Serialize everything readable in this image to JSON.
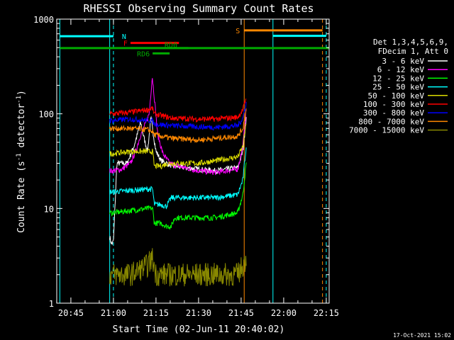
{
  "chart_data": {
    "type": "line",
    "title": "RHESSI Observing Summary Count Rates",
    "xlabel": "Start Time (02-Jun-11 20:40:02)",
    "ylabel": "Count Rate (s⁻¹ detector⁻¹)",
    "ylabel_parts": [
      "Count Rate (s",
      "-1",
      " detector",
      "-1",
      ")"
    ],
    "y_scale": "log",
    "ylim": [
      1,
      1000
    ],
    "y_ticks": [
      {
        "v": 1,
        "label": "1"
      },
      {
        "v": 10,
        "label": "10"
      },
      {
        "v": 100,
        "label": "100"
      },
      {
        "v": 1000,
        "label": "1000"
      }
    ],
    "xlim_minutes": [
      20.667,
      22.267
    ],
    "x_ticks": [
      {
        "h": 20.75,
        "label": "20:45"
      },
      {
        "h": 21.0,
        "label": "21:00"
      },
      {
        "h": 21.25,
        "label": "21:15"
      },
      {
        "h": 21.5,
        "label": "21:30"
      },
      {
        "h": 21.75,
        "label": "21:45"
      },
      {
        "h": 22.0,
        "label": "22:00"
      },
      {
        "h": 22.25,
        "label": "22:15"
      }
    ],
    "legend": {
      "position": "right",
      "header": [
        "Det 1,3,4,5,6,9,",
        "FDecim 1, Att 0"
      ],
      "entries": [
        {
          "label": "3 - 6 keV",
          "color": "#ffffff"
        },
        {
          "label": "6 - 12 keV",
          "color": "#ff00ff"
        },
        {
          "label": "12 - 25 keV",
          "color": "#00ff00"
        },
        {
          "label": "25 - 50 keV",
          "color": "#00ffff"
        },
        {
          "label": "50 - 100 keV",
          "color": "#dddd00"
        },
        {
          "label": "100 - 300 keV",
          "color": "#ff0000"
        },
        {
          "label": "300 - 800 keV",
          "color": "#0000ff"
        },
        {
          "label": "800 - 7000 keV",
          "color": "#ff8800"
        },
        {
          "label": "7000 - 15000 keV",
          "color": "#888800"
        }
      ]
    },
    "series": [
      {
        "color": "#ffffff",
        "points": [
          [
            20.978,
            5
          ],
          [
            20.99,
            4.2
          ],
          [
            21.0,
            4.5
          ],
          [
            21.02,
            30
          ],
          [
            21.08,
            30
          ],
          [
            21.12,
            45
          ],
          [
            21.16,
            80
          ],
          [
            21.18,
            55
          ],
          [
            21.2,
            40
          ],
          [
            21.22,
            90
          ],
          [
            21.25,
            40
          ],
          [
            21.28,
            32
          ],
          [
            21.35,
            28
          ],
          [
            21.5,
            26
          ],
          [
            21.6,
            25
          ],
          [
            21.73,
            27
          ],
          [
            21.76,
            40
          ],
          [
            21.78,
            90
          ]
        ]
      },
      {
        "color": "#ff00ff",
        "points": [
          [
            20.978,
            25
          ],
          [
            21.0,
            25
          ],
          [
            21.05,
            26
          ],
          [
            21.1,
            30
          ],
          [
            21.13,
            40
          ],
          [
            21.16,
            60
          ],
          [
            21.19,
            80
          ],
          [
            21.21,
            100
          ],
          [
            21.228,
            250
          ],
          [
            21.24,
            150
          ],
          [
            21.26,
            60
          ],
          [
            21.29,
            38
          ],
          [
            21.33,
            30
          ],
          [
            21.38,
            28
          ],
          [
            21.5,
            25
          ],
          [
            21.6,
            24
          ],
          [
            21.73,
            26
          ],
          [
            21.76,
            45
          ],
          [
            21.78,
            110
          ]
        ]
      },
      {
        "color": "#00ff00",
        "points": [
          [
            20.978,
            9
          ],
          [
            21.0,
            9
          ],
          [
            21.1,
            9.5
          ],
          [
            21.2,
            10
          ],
          [
            21.23,
            10
          ],
          [
            21.24,
            7
          ],
          [
            21.28,
            7
          ],
          [
            21.31,
            6.5
          ],
          [
            21.34,
            6.5
          ],
          [
            21.36,
            8
          ],
          [
            21.5,
            8
          ],
          [
            21.6,
            8
          ],
          [
            21.73,
            9
          ],
          [
            21.76,
            14
          ],
          [
            21.78,
            30
          ]
        ]
      },
      {
        "color": "#00ffff",
        "points": [
          [
            20.978,
            15
          ],
          [
            21.0,
            15
          ],
          [
            21.1,
            15.5
          ],
          [
            21.2,
            16
          ],
          [
            21.23,
            16
          ],
          [
            21.24,
            11
          ],
          [
            21.28,
            11
          ],
          [
            21.31,
            10.5
          ],
          [
            21.34,
            13
          ],
          [
            21.5,
            13
          ],
          [
            21.6,
            13
          ],
          [
            21.73,
            14
          ],
          [
            21.76,
            20
          ],
          [
            21.78,
            45
          ]
        ]
      },
      {
        "color": "#dddd00",
        "points": [
          [
            20.978,
            38
          ],
          [
            21.0,
            38
          ],
          [
            21.1,
            40
          ],
          [
            21.2,
            40
          ],
          [
            21.23,
            40
          ],
          [
            21.24,
            28
          ],
          [
            21.28,
            28
          ],
          [
            21.32,
            30
          ],
          [
            21.5,
            30
          ],
          [
            21.6,
            32
          ],
          [
            21.73,
            35
          ],
          [
            21.76,
            45
          ],
          [
            21.78,
            80
          ]
        ]
      },
      {
        "color": "#ff0000",
        "points": [
          [
            20.978,
            100
          ],
          [
            21.0,
            100
          ],
          [
            21.1,
            104
          ],
          [
            21.2,
            110
          ],
          [
            21.228,
            115
          ],
          [
            21.24,
            100
          ],
          [
            21.34,
            90
          ],
          [
            21.5,
            88
          ],
          [
            21.6,
            88
          ],
          [
            21.73,
            92
          ],
          [
            21.76,
            110
          ],
          [
            21.78,
            150
          ]
        ]
      },
      {
        "color": "#0000ff",
        "points": [
          [
            20.978,
            85
          ],
          [
            21.0,
            85
          ],
          [
            21.1,
            88
          ],
          [
            21.2,
            85
          ],
          [
            21.228,
            85
          ],
          [
            21.24,
            78
          ],
          [
            21.34,
            75
          ],
          [
            21.5,
            73
          ],
          [
            21.6,
            72
          ],
          [
            21.73,
            75
          ],
          [
            21.76,
            90
          ],
          [
            21.78,
            130
          ]
        ]
      },
      {
        "color": "#ff8800",
        "points": [
          [
            20.978,
            70
          ],
          [
            21.0,
            70
          ],
          [
            21.1,
            70
          ],
          [
            21.2,
            68
          ],
          [
            21.23,
            65
          ],
          [
            21.24,
            60
          ],
          [
            21.34,
            55
          ],
          [
            21.5,
            53
          ],
          [
            21.6,
            55
          ],
          [
            21.73,
            58
          ],
          [
            21.76,
            70
          ],
          [
            21.78,
            110
          ]
        ]
      },
      {
        "color": "#888800",
        "points": [
          [
            20.978,
            2
          ],
          [
            21.0,
            2
          ],
          [
            21.1,
            2
          ],
          [
            21.2,
            2.5
          ],
          [
            21.228,
            3
          ],
          [
            21.25,
            2
          ],
          [
            21.3,
            2
          ],
          [
            21.5,
            2
          ],
          [
            21.6,
            2
          ],
          [
            21.73,
            2
          ],
          [
            21.76,
            2.5
          ],
          [
            21.78,
            3
          ]
        ]
      }
    ],
    "markers": {
      "vertical_lines": [
        {
          "h": 20.685,
          "color": "#00ffff",
          "style": "solid"
        },
        {
          "h": 20.978,
          "color": "#00ffff",
          "style": "solid"
        },
        {
          "h": 21.0,
          "color": "#00ffff",
          "style": "dashed"
        },
        {
          "h": 21.768,
          "color": "#ff8800",
          "style": "solid"
        },
        {
          "h": 21.937,
          "color": "#00ffff",
          "style": "solid"
        },
        {
          "h": 22.228,
          "color": "#ff8800",
          "style": "dashed"
        },
        {
          "h": 22.25,
          "color": "#00ffff",
          "style": "dashed"
        }
      ],
      "bars": [
        {
          "label": "N",
          "color": "#00ffff",
          "h0": 20.685,
          "h1": 21.0,
          "v": 660,
          "label_h": 21.05,
          "label_side": "right"
        },
        {
          "label": "F",
          "color": "#ff0000",
          "h0": 21.1,
          "h1": 21.385,
          "v": 560,
          "label_h": 21.07,
          "label_side": "left"
        },
        {
          "label": "RD0",
          "color": "#00aa00",
          "h0": 21.1,
          "h1": 21.44,
          "v": 495,
          "label_h": 21.3,
          "label_side": "above"
        },
        {
          "label": "",
          "color": "#00aa00",
          "h0": 20.685,
          "h1": 22.267,
          "v": 495,
          "label_h": 0,
          "label_side": "none"
        },
        {
          "label": "RD6",
          "color": "#00aa00",
          "h0": 21.23,
          "h1": 21.33,
          "v": 435,
          "label_h": 21.16,
          "label_side": "left"
        },
        {
          "label": "S",
          "color": "#ff8800",
          "h0": 21.768,
          "h1": 22.228,
          "v": 760,
          "label_h": 21.72,
          "label_side": "left"
        },
        {
          "label": "",
          "color": "#00ffff",
          "h0": 21.937,
          "h1": 22.25,
          "v": 665,
          "label_h": 0,
          "label_side": "none"
        }
      ]
    }
  },
  "footer": {
    "date_stamp": "17-Oct-2021 15:02"
  }
}
